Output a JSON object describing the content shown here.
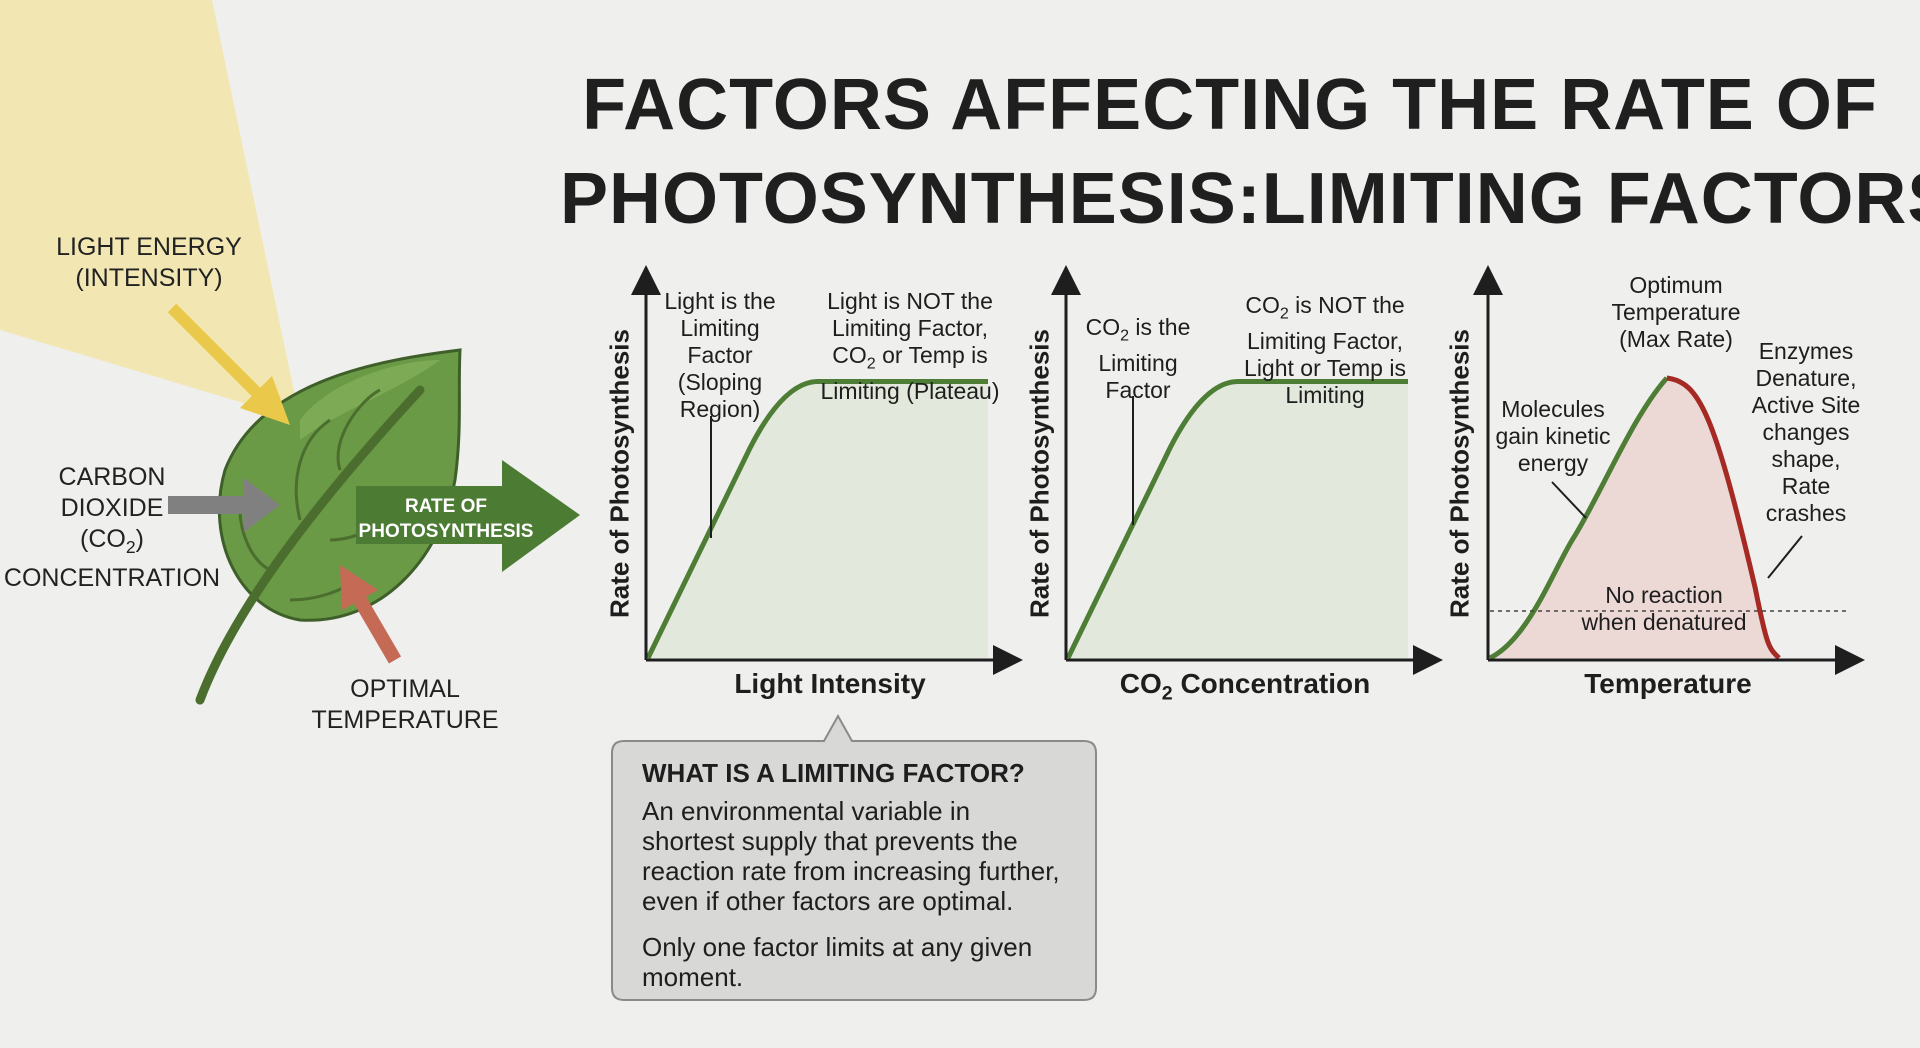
{
  "title": {
    "line1": "FACTORS AFFECTING THE RATE OF",
    "line2": "PHOTOSYNTHESIS:LIMITING FACTORS."
  },
  "leaf": {
    "light_label_1": "LIGHT ENERGY",
    "light_label_2": "(INTENSITY)",
    "co2_label_1": "CARBON",
    "co2_label_2": "DIOXIDE",
    "co2_label_3": "(CO",
    "co2_label_sub": "2",
    "co2_label_3b": ")",
    "co2_label_4": "CONCENTRATION",
    "temp_label_1": "OPTIMAL",
    "temp_label_2": "TEMPERATURE",
    "rate_label_1": "RATE OF",
    "rate_label_2": "PHOTOSYNTHESIS"
  },
  "charts": {
    "light": {
      "ylabel": "Rate of Photosynthesis",
      "xlabel": "Light Intensity",
      "ann1": [
        "Light is the",
        "Limiting",
        "Factor",
        "(Sloping",
        "Region)"
      ],
      "ann2_l1": "Light is NOT the",
      "ann2_l2": "Limiting Factor,",
      "ann2_l3a": "CO",
      "ann2_l3sub": "2",
      "ann2_l3b": " or Temp is",
      "ann2_l4": "Limiting (Plateau)"
    },
    "co2": {
      "ylabel": "Rate of Photosynthesis",
      "xlabel_a": "CO",
      "xlabel_sub": "2",
      "xlabel_b": " Concentration",
      "ann1_l1a": "CO",
      "ann1_l1sub": "2",
      "ann1_l1b": " is the",
      "ann1_l2": "Limiting",
      "ann1_l3": "Factor",
      "ann2_l1a": "CO",
      "ann2_l1sub": "2",
      "ann2_l1b": " is NOT the",
      "ann2_l2": "Limiting Factor,",
      "ann2_l3": "Light or Temp is",
      "ann2_l4": "Limiting"
    },
    "temp": {
      "ylabel": "Rate of Photosynthesis",
      "xlabel": "Temperature",
      "ann_opt": [
        "Optimum",
        "Temperature",
        "(Max Rate)"
      ],
      "ann_rise": [
        "Molecules",
        "gain kinetic",
        "energy"
      ],
      "ann_fall": [
        "Enzymes",
        "Denature,",
        "Active Site",
        "changes",
        "shape,",
        "Rate",
        "crashes"
      ],
      "ann_none": [
        "No reaction",
        "when denatured"
      ]
    }
  },
  "callout": {
    "heading": "WHAT IS A LIMITING FACTOR?",
    "para1": [
      "An environmental variable in",
      "shortest supply that prevents the",
      "reaction rate from increasing further,",
      "even if other factors are optimal."
    ],
    "para2": [
      "Only one factor limits at any given",
      "moment."
    ]
  },
  "colors": {
    "background": "#efefed",
    "leaf": "#6a9a45",
    "rise_curve": "#4e7d35",
    "fall_curve": "#a52a24",
    "plateau_fill": "#e2e8dc",
    "temp_fill": "#ecd9d6",
    "light_beam": "#f2e6ac",
    "arrow_light": "#e9c84a",
    "arrow_co2": "#808080",
    "arrow_temp": "#c46a55",
    "arrow_rate": "#4c7b33"
  },
  "chart_data": [
    {
      "type": "line",
      "title": "",
      "xlabel": "Light Intensity",
      "ylabel": "Rate of Photosynthesis",
      "series": [
        {
          "values": [
            [
              0,
              0
            ],
            [
              0.3,
              0.6
            ],
            [
              0.4,
              0.74
            ],
            [
              0.5,
              0.79
            ],
            [
              1.0,
              0.79
            ]
          ]
        }
      ]
    },
    {
      "type": "line",
      "title": "",
      "xlabel": "CO2 Concentration",
      "ylabel": "Rate of Photosynthesis",
      "series": [
        {
          "values": [
            [
              0,
              0
            ],
            [
              0.3,
              0.6
            ],
            [
              0.4,
              0.74
            ],
            [
              0.5,
              0.79
            ],
            [
              1.0,
              0.79
            ]
          ]
        }
      ]
    },
    {
      "type": "line",
      "title": "",
      "xlabel": "Temperature",
      "ylabel": "Rate of Photosynthesis",
      "series": [
        {
          "values": [
            [
              0,
              0
            ],
            [
              0.25,
              0.35
            ],
            [
              0.45,
              0.72
            ],
            [
              0.52,
              0.8
            ],
            [
              0.6,
              0.76
            ],
            [
              0.78,
              0.2
            ],
            [
              0.85,
              0
            ]
          ]
        }
      ]
    }
  ]
}
